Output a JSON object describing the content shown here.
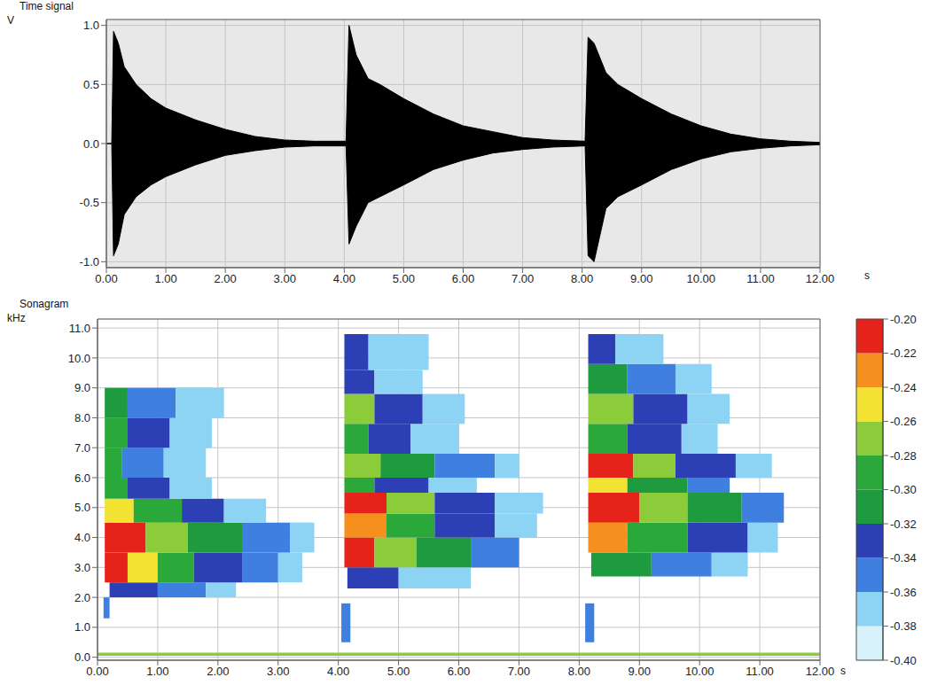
{
  "chart_data": [
    {
      "type": "area",
      "title": "Time signal",
      "y_label": "V",
      "x_label": "s",
      "grid": true,
      "xlim": [
        0,
        12
      ],
      "ylim": [
        -1.05,
        1.05
      ],
      "xticks": [
        {
          "value": 0,
          "label": "0.00"
        },
        {
          "value": 1,
          "label": "1.00"
        },
        {
          "value": 2,
          "label": "2.00"
        },
        {
          "value": 3,
          "label": "3.00"
        },
        {
          "value": 4,
          "label": "4.00"
        },
        {
          "value": 5,
          "label": "5.00"
        },
        {
          "value": 6,
          "label": "6.00"
        },
        {
          "value": 7,
          "label": "7.00"
        },
        {
          "value": 8,
          "label": "8.00"
        },
        {
          "value": 9,
          "label": "9.00"
        },
        {
          "value": 10,
          "label": "10.00"
        },
        {
          "value": 11,
          "label": "11.00"
        },
        {
          "value": 12,
          "label": "12.00"
        }
      ],
      "yticks": [
        {
          "value": -1,
          "label": "-1.0"
        },
        {
          "value": -0.5,
          "label": "-0.5"
        },
        {
          "value": 0,
          "label": "0.0"
        },
        {
          "value": 0.5,
          "label": "0.5"
        },
        {
          "value": 1,
          "label": "1.0"
        }
      ],
      "color": "#000000",
      "x": [
        0.0,
        0.09,
        0.12,
        0.2,
        0.3,
        0.5,
        0.75,
        1.0,
        1.5,
        2.0,
        2.5,
        3.0,
        3.5,
        4.0,
        4.03,
        4.08,
        4.2,
        4.4,
        4.6,
        5.0,
        5.5,
        6.0,
        6.5,
        7.0,
        7.5,
        8.05,
        8.1,
        8.2,
        8.4,
        8.6,
        9.0,
        9.5,
        10.0,
        10.5,
        11.0,
        11.5,
        12.0
      ],
      "upper": [
        0,
        0,
        0.95,
        0.85,
        0.65,
        0.5,
        0.38,
        0.3,
        0.2,
        0.12,
        0.06,
        0.03,
        0.02,
        0.02,
        0.02,
        1.0,
        0.75,
        0.55,
        0.5,
        0.38,
        0.25,
        0.15,
        0.1,
        0.05,
        0.03,
        0.02,
        0.9,
        0.85,
        0.6,
        0.5,
        0.38,
        0.25,
        0.15,
        0.08,
        0.04,
        0.02,
        0.01
      ],
      "lower": [
        0,
        0,
        -0.95,
        -0.85,
        -0.6,
        -0.45,
        -0.35,
        -0.28,
        -0.18,
        -0.1,
        -0.06,
        -0.03,
        -0.02,
        -0.02,
        -0.02,
        -0.85,
        -0.7,
        -0.5,
        -0.45,
        -0.35,
        -0.22,
        -0.14,
        -0.08,
        -0.05,
        -0.03,
        -0.02,
        -0.95,
        -1.0,
        -0.55,
        -0.45,
        -0.35,
        -0.22,
        -0.13,
        -0.07,
        -0.04,
        -0.02,
        -0.01
      ]
    },
    {
      "type": "heatmap",
      "title": "Sonagram",
      "y_label": "kHz",
      "x_label": "s",
      "grid": true,
      "xlim": [
        0,
        12
      ],
      "ylim": [
        -0.1,
        11.3
      ],
      "xticks": [
        {
          "value": 0,
          "label": "0.00"
        },
        {
          "value": 1,
          "label": "1.00"
        },
        {
          "value": 2,
          "label": "2.00"
        },
        {
          "value": 3,
          "label": "3.00"
        },
        {
          "value": 4,
          "label": "4.00"
        },
        {
          "value": 5,
          "label": "5.00"
        },
        {
          "value": 6,
          "label": "6.00"
        },
        {
          "value": 7,
          "label": "7.00"
        },
        {
          "value": 8,
          "label": "8.00"
        },
        {
          "value": 9,
          "label": "9.00"
        },
        {
          "value": 10,
          "label": "10.00"
        },
        {
          "value": 11,
          "label": "11.00"
        },
        {
          "value": 12,
          "label": "12.00"
        }
      ],
      "yticks": [
        {
          "value": 0,
          "label": "0.0"
        },
        {
          "value": 1,
          "label": "1.0"
        },
        {
          "value": 2,
          "label": "2.0"
        },
        {
          "value": 3,
          "label": "3.0"
        },
        {
          "value": 4,
          "label": "4.0"
        },
        {
          "value": 5,
          "label": "5.0"
        },
        {
          "value": 6,
          "label": "6.0"
        },
        {
          "value": 7,
          "label": "7.0"
        },
        {
          "value": 8,
          "label": "8.0"
        },
        {
          "value": 9,
          "label": "9.0"
        },
        {
          "value": 10,
          "label": "10.0"
        },
        {
          "value": 11,
          "label": "11.0"
        }
      ],
      "colorbar": {
        "range": [
          -0.4,
          -0.2
        ],
        "ticks": [
          {
            "value": -0.4,
            "label": "-0.40"
          },
          {
            "value": -0.38,
            "label": "-0.38"
          },
          {
            "value": -0.36,
            "label": "-0.36"
          },
          {
            "value": -0.34,
            "label": "-0.34"
          },
          {
            "value": -0.32,
            "label": "-0.32"
          },
          {
            "value": -0.3,
            "label": "-0.30"
          },
          {
            "value": -0.28,
            "label": "-0.28"
          },
          {
            "value": -0.26,
            "label": "-0.26"
          },
          {
            "value": -0.24,
            "label": "-0.24"
          },
          {
            "value": -0.22,
            "label": "-0.22"
          },
          {
            "value": -0.2,
            "label": "-0.20"
          }
        ]
      },
      "cells": [
        [
          0.0,
          12.0,
          0.05,
          0.15,
          -0.28
        ],
        [
          0.1,
          0.2,
          1.3,
          2.0,
          -0.36
        ],
        [
          0.2,
          1.0,
          2.0,
          2.5,
          -0.34
        ],
        [
          1.0,
          1.8,
          2.0,
          2.5,
          -0.36
        ],
        [
          1.8,
          2.3,
          2.0,
          2.5,
          -0.38
        ],
        [
          0.12,
          0.5,
          2.5,
          3.5,
          -0.22
        ],
        [
          0.5,
          1.0,
          2.5,
          3.5,
          -0.26
        ],
        [
          1.0,
          1.6,
          2.5,
          3.5,
          -0.3
        ],
        [
          1.6,
          2.4,
          2.5,
          3.5,
          -0.34
        ],
        [
          2.4,
          3.0,
          2.5,
          3.5,
          -0.36
        ],
        [
          3.0,
          3.4,
          2.5,
          3.5,
          -0.38
        ],
        [
          0.12,
          0.8,
          3.5,
          4.5,
          -0.22
        ],
        [
          0.8,
          1.5,
          3.5,
          4.5,
          -0.28
        ],
        [
          1.5,
          2.4,
          3.5,
          4.5,
          -0.32
        ],
        [
          2.4,
          3.2,
          3.5,
          4.5,
          -0.35
        ],
        [
          3.2,
          3.6,
          3.5,
          4.5,
          -0.38
        ],
        [
          0.12,
          0.6,
          4.5,
          5.3,
          -0.26
        ],
        [
          0.6,
          1.4,
          4.5,
          5.3,
          -0.3
        ],
        [
          1.4,
          2.1,
          4.5,
          5.3,
          -0.34
        ],
        [
          2.1,
          2.8,
          4.5,
          5.3,
          -0.37
        ],
        [
          0.12,
          0.5,
          5.3,
          6.0,
          -0.3
        ],
        [
          0.5,
          1.2,
          5.3,
          6.0,
          -0.34
        ],
        [
          1.2,
          1.9,
          5.3,
          6.0,
          -0.37
        ],
        [
          0.12,
          0.4,
          6.0,
          7.0,
          -0.3
        ],
        [
          0.4,
          1.1,
          6.0,
          7.0,
          -0.35
        ],
        [
          1.1,
          1.8,
          6.0,
          7.0,
          -0.38
        ],
        [
          0.12,
          0.5,
          7.0,
          8.0,
          -0.3
        ],
        [
          0.5,
          1.2,
          7.0,
          8.0,
          -0.34
        ],
        [
          1.2,
          1.9,
          7.0,
          8.0,
          -0.37
        ],
        [
          0.12,
          0.5,
          8.0,
          9.0,
          -0.32
        ],
        [
          0.5,
          1.3,
          8.0,
          9.0,
          -0.35
        ],
        [
          1.3,
          2.1,
          8.0,
          9.0,
          -0.38
        ],
        [
          4.05,
          4.2,
          0.5,
          1.8,
          -0.36
        ],
        [
          4.15,
          5.0,
          2.3,
          3.0,
          -0.34
        ],
        [
          5.0,
          6.2,
          2.3,
          3.0,
          -0.37
        ],
        [
          4.1,
          4.6,
          3.0,
          4.0,
          -0.22
        ],
        [
          4.6,
          5.3,
          3.0,
          4.0,
          -0.27
        ],
        [
          5.3,
          6.2,
          3.0,
          4.0,
          -0.32
        ],
        [
          6.2,
          7.0,
          3.0,
          4.0,
          -0.36
        ],
        [
          4.1,
          4.8,
          4.0,
          4.8,
          -0.24
        ],
        [
          4.8,
          5.6,
          4.0,
          4.8,
          -0.3
        ],
        [
          5.6,
          6.6,
          4.0,
          4.8,
          -0.34
        ],
        [
          6.6,
          7.3,
          4.0,
          4.8,
          -0.38
        ],
        [
          4.1,
          4.8,
          4.8,
          5.5,
          -0.22
        ],
        [
          4.8,
          5.6,
          4.8,
          5.5,
          -0.28
        ],
        [
          5.6,
          6.6,
          4.8,
          5.5,
          -0.33
        ],
        [
          6.6,
          7.4,
          4.8,
          5.5,
          -0.37
        ],
        [
          4.1,
          4.6,
          5.5,
          6.0,
          -0.3
        ],
        [
          4.6,
          5.5,
          5.5,
          6.0,
          -0.34
        ],
        [
          5.5,
          6.3,
          5.5,
          6.0,
          -0.37
        ],
        [
          4.1,
          4.7,
          6.0,
          6.8,
          -0.27
        ],
        [
          4.7,
          5.6,
          6.0,
          6.8,
          -0.31
        ],
        [
          5.6,
          6.6,
          6.0,
          6.8,
          -0.35
        ],
        [
          6.6,
          7.0,
          6.0,
          6.8,
          -0.38
        ],
        [
          4.1,
          4.5,
          6.8,
          7.8,
          -0.3
        ],
        [
          4.5,
          5.2,
          6.8,
          7.8,
          -0.34
        ],
        [
          5.2,
          6.0,
          6.8,
          7.8,
          -0.37
        ],
        [
          4.1,
          4.6,
          7.8,
          8.8,
          -0.28
        ],
        [
          4.6,
          5.4,
          7.8,
          8.8,
          -0.34
        ],
        [
          5.4,
          6.1,
          7.8,
          8.8,
          -0.37
        ],
        [
          4.1,
          4.6,
          8.8,
          9.6,
          -0.34
        ],
        [
          4.6,
          5.4,
          8.8,
          9.6,
          -0.37
        ],
        [
          4.1,
          4.5,
          9.6,
          10.8,
          -0.34
        ],
        [
          4.5,
          5.5,
          9.6,
          10.8,
          -0.37
        ],
        [
          8.1,
          8.25,
          0.5,
          1.8,
          -0.36
        ],
        [
          8.2,
          9.2,
          2.7,
          3.5,
          -0.32
        ],
        [
          9.2,
          10.2,
          2.7,
          3.5,
          -0.35
        ],
        [
          10.2,
          10.8,
          2.7,
          3.5,
          -0.38
        ],
        [
          8.15,
          8.8,
          3.5,
          4.5,
          -0.24
        ],
        [
          8.8,
          9.8,
          3.5,
          4.5,
          -0.3
        ],
        [
          9.8,
          10.8,
          3.5,
          4.5,
          -0.34
        ],
        [
          10.8,
          11.3,
          3.5,
          4.5,
          -0.38
        ],
        [
          8.15,
          9.0,
          4.5,
          5.5,
          -0.22
        ],
        [
          9.0,
          9.8,
          4.5,
          5.5,
          -0.27
        ],
        [
          9.8,
          10.7,
          4.5,
          5.5,
          -0.32
        ],
        [
          10.7,
          11.4,
          4.5,
          5.5,
          -0.36
        ],
        [
          8.15,
          8.8,
          5.5,
          6.0,
          -0.26
        ],
        [
          8.8,
          9.8,
          5.5,
          6.0,
          -0.32
        ],
        [
          9.8,
          10.5,
          5.5,
          6.0,
          -0.36
        ],
        [
          8.15,
          8.9,
          6.0,
          6.8,
          -0.22
        ],
        [
          8.9,
          9.6,
          6.0,
          6.8,
          -0.28
        ],
        [
          9.6,
          10.6,
          6.0,
          6.8,
          -0.33
        ],
        [
          10.6,
          11.2,
          6.0,
          6.8,
          -0.37
        ],
        [
          8.15,
          8.8,
          6.8,
          7.8,
          -0.3
        ],
        [
          8.8,
          9.7,
          6.8,
          7.8,
          -0.34
        ],
        [
          9.7,
          10.3,
          6.8,
          7.8,
          -0.37
        ],
        [
          8.15,
          8.9,
          7.8,
          8.8,
          -0.28
        ],
        [
          8.9,
          9.8,
          7.8,
          8.8,
          -0.33
        ],
        [
          9.8,
          10.5,
          7.8,
          8.8,
          -0.37
        ],
        [
          8.15,
          8.8,
          8.8,
          9.8,
          -0.32
        ],
        [
          8.8,
          9.6,
          8.8,
          9.8,
          -0.35
        ],
        [
          9.6,
          10.2,
          8.8,
          9.8,
          -0.38
        ],
        [
          8.15,
          8.6,
          9.8,
          10.8,
          -0.34
        ],
        [
          8.6,
          9.4,
          9.8,
          10.8,
          -0.37
        ]
      ]
    }
  ]
}
